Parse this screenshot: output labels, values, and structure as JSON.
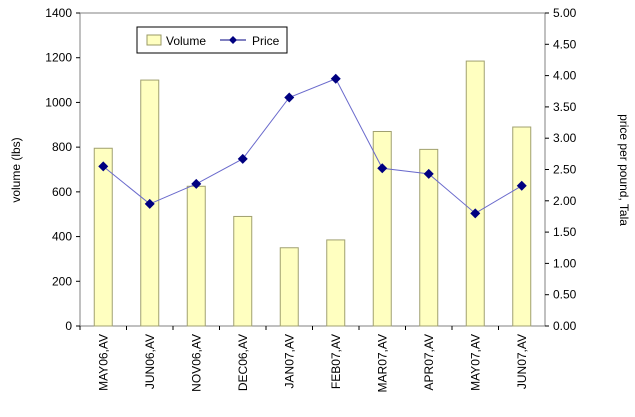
{
  "chart_data": {
    "type": "bar",
    "categories": [
      "MAY06,AV",
      "JUN06,AV",
      "NOV06,AV",
      "DEC06,AV",
      "JAN07,AV",
      "FEB07,AV",
      "MAR07,AV",
      "APR07,AV",
      "MAY07,AV",
      "JUN07,AV"
    ],
    "series": [
      {
        "name": "Volume",
        "type": "bar",
        "axis": "left",
        "color": "#ffffc0",
        "values": [
          795,
          1100,
          625,
          490,
          350,
          385,
          870,
          790,
          1185,
          890
        ]
      },
      {
        "name": "Price",
        "type": "line",
        "axis": "right",
        "color": "#000080",
        "values": [
          2.55,
          1.95,
          2.27,
          2.67,
          3.65,
          3.95,
          2.52,
          2.43,
          1.8,
          2.24
        ]
      }
    ],
    "ylabel": "volume (lbs)",
    "y2label": "price per pound, Tala",
    "ylim": [
      0,
      1400
    ],
    "y2lim": [
      0,
      5
    ],
    "yticks": [
      "0",
      "200",
      "400",
      "600",
      "800",
      "1000",
      "1200",
      "1400"
    ],
    "y2ticks": [
      "0.00",
      "0.50",
      "1.00",
      "1.50",
      "2.00",
      "2.50",
      "3.00",
      "3.50",
      "4.00",
      "4.50",
      "5.00"
    ],
    "legend_position": "top-left",
    "grid": false
  }
}
